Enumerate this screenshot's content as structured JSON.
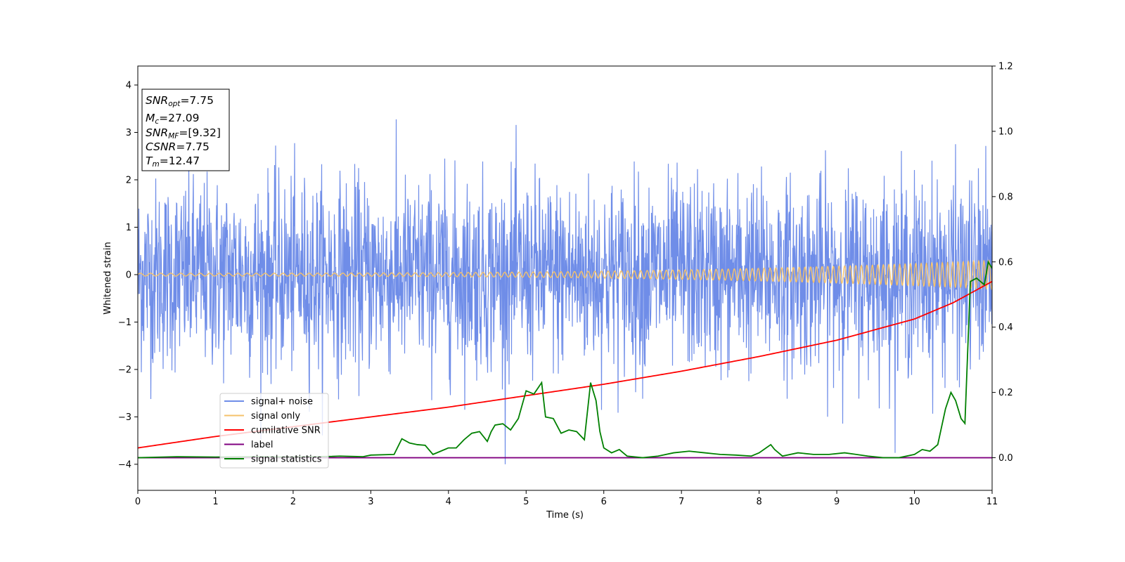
{
  "chart_data": {
    "type": "line",
    "title": "",
    "xlabel": "Time (s)",
    "ylabel": "Whitened strain",
    "xlim": [
      0,
      11
    ],
    "ylim": [
      -4.55,
      4.4
    ],
    "y2lim": [
      -0.1,
      1.2
    ],
    "xticks": [
      "0",
      "1",
      "2",
      "3",
      "4",
      "5",
      "6",
      "7",
      "8",
      "9",
      "10",
      "11"
    ],
    "yticks": [
      "−4",
      "−3",
      "−2",
      "−1",
      "0",
      "1",
      "2",
      "3",
      "4"
    ],
    "y2ticks": [
      "0.0",
      "0.2",
      "0.4",
      "0.6",
      "0.8",
      "1.0",
      "1.2"
    ],
    "grid": false,
    "legend_position": "lower-left",
    "colors": {
      "noise": "#6f8de8",
      "signal": "#f5c26b",
      "cumulative": "#ff0000",
      "label": "#800080",
      "statistics": "#008000"
    },
    "info_box": [
      {
        "name": "SNR",
        "sub": "opt",
        "value": "=7.75"
      },
      {
        "name": "M",
        "sub": "c",
        "value": "=27.09"
      },
      {
        "name": "SNR",
        "sub": "MF",
        "value": "=[9.32]"
      },
      {
        "name": "CSNR",
        "sub": "",
        "value": "=7.75"
      },
      {
        "name": "T",
        "sub": "m",
        "value": "=12.47"
      }
    ],
    "series": [
      {
        "name": "signal+ noise",
        "axis": "left",
        "amplitude_approx": 4.0
      },
      {
        "name": "signal only",
        "axis": "left",
        "amplitude_start": 0.03,
        "amplitude_end": 0.3
      },
      {
        "name": "cumilative SNR",
        "axis": "right",
        "x": [
          0,
          1,
          2,
          3,
          4,
          5,
          6,
          7,
          8,
          9,
          10,
          10.5,
          11
        ],
        "y": [
          0.03,
          0.065,
          0.095,
          0.125,
          0.155,
          0.19,
          0.225,
          0.265,
          0.31,
          0.36,
          0.425,
          0.475,
          0.54
        ]
      },
      {
        "name": "label",
        "axis": "right",
        "x": [
          0,
          11
        ],
        "y": [
          0.0,
          0.0
        ]
      },
      {
        "name": "signal statistics",
        "axis": "right",
        "x": [
          0,
          0.5,
          1,
          1.5,
          2,
          2.5,
          2.6,
          2.9,
          3.0,
          3.3,
          3.4,
          3.5,
          3.6,
          3.7,
          3.8,
          3.9,
          4.0,
          4.1,
          4.2,
          4.3,
          4.4,
          4.5,
          4.55,
          4.6,
          4.7,
          4.8,
          4.9,
          5.0,
          5.1,
          5.2,
          5.25,
          5.35,
          5.45,
          5.55,
          5.65,
          5.75,
          5.83,
          5.9,
          5.95,
          6.0,
          6.1,
          6.2,
          6.3,
          6.5,
          6.7,
          6.9,
          7.1,
          7.3,
          7.5,
          7.7,
          7.9,
          8.0,
          8.15,
          8.2,
          8.3,
          8.5,
          8.7,
          8.9,
          9.1,
          9.25,
          9.4,
          9.6,
          9.8,
          10.0,
          10.1,
          10.2,
          10.3,
          10.4,
          10.47,
          10.53,
          10.6,
          10.65,
          10.72,
          10.8,
          10.85,
          10.9,
          10.95,
          11.0
        ],
        "y": [
          0.0,
          0.003,
          0.002,
          0.003,
          0.002,
          0.004,
          0.005,
          0.003,
          0.008,
          0.01,
          0.058,
          0.045,
          0.04,
          0.038,
          0.01,
          0.02,
          0.03,
          0.03,
          0.055,
          0.075,
          0.08,
          0.05,
          0.08,
          0.1,
          0.104,
          0.085,
          0.12,
          0.205,
          0.195,
          0.23,
          0.125,
          0.12,
          0.075,
          0.085,
          0.08,
          0.055,
          0.23,
          0.175,
          0.08,
          0.03,
          0.015,
          0.025,
          0.005,
          0.0,
          0.005,
          0.015,
          0.02,
          0.015,
          0.01,
          0.008,
          0.005,
          0.015,
          0.04,
          0.025,
          0.005,
          0.015,
          0.01,
          0.01,
          0.015,
          0.01,
          0.005,
          0.0,
          0.0,
          0.01,
          0.025,
          0.02,
          0.04,
          0.15,
          0.2,
          0.175,
          0.12,
          0.105,
          0.54,
          0.55,
          0.54,
          0.53,
          0.6,
          0.58
        ]
      }
    ]
  }
}
